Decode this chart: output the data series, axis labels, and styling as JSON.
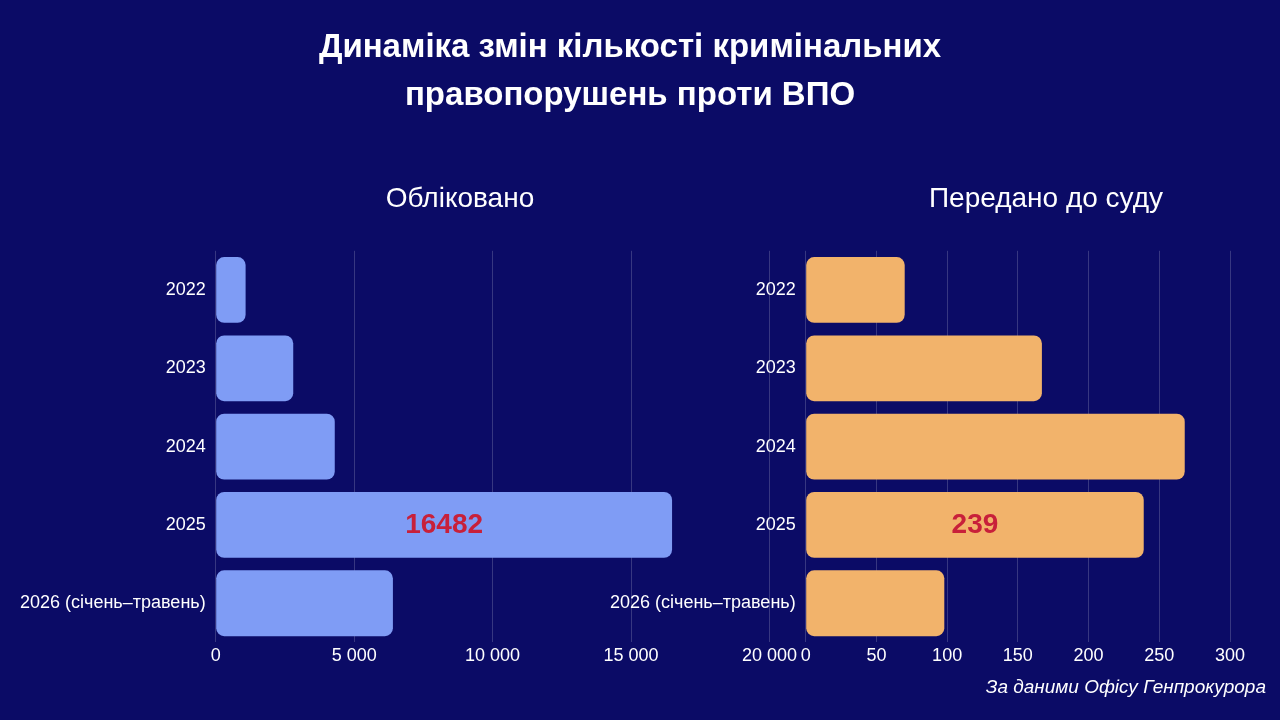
{
  "chart_data": [
    {
      "type": "bar",
      "orientation": "horizontal",
      "title": "Динаміка змін кількості кримінальних правопорушень проти ВПО",
      "subtitle": "Обліковано",
      "categories": [
        "2022",
        "2023",
        "2024",
        "2025",
        "2026 (січень–травень)"
      ],
      "values": [
        1080,
        2800,
        4300,
        16482,
        6400
      ],
      "color": "#7f9cf5",
      "value_labels": [
        null,
        null,
        null,
        "16482",
        null
      ],
      "xlim": [
        0,
        20000
      ],
      "xticks": [
        0,
        {
          "value": 5000,
          "label": "5 000"
        },
        {
          "value": 10000,
          "label": "10 000"
        },
        {
          "value": 15000,
          "label": "15 000"
        },
        {
          "value": 20000,
          "label": "20 000"
        }
      ],
      "grid": "x",
      "legend": false
    },
    {
      "type": "bar",
      "orientation": "horizontal",
      "subtitle": "Передано до суду",
      "categories": [
        "2022",
        "2023",
        "2024",
        "2025",
        "2026 (січень–травень)"
      ],
      "values": [
        70,
        167,
        268,
        239,
        98
      ],
      "color": "#f2b36b",
      "value_labels": [
        null,
        null,
        null,
        "239",
        null
      ],
      "xlim": [
        0,
        300
      ],
      "xticks": [
        0,
        50,
        100,
        150,
        200,
        250,
        300
      ],
      "grid": "x",
      "legend": false,
      "annotations": [
        "За даними Офісу Генпрокурора"
      ]
    }
  ]
}
